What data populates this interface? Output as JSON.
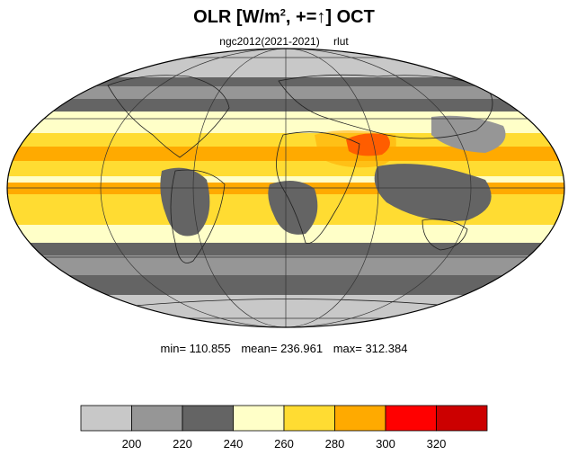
{
  "title": {
    "main": "OLR [W/m",
    "superscript": "2",
    "suffix": ", +=",
    "arrow": "↑",
    "tail": "] OCT"
  },
  "subtitle": {
    "source": "ngc2012(2021-2021)",
    "variable": "rlut"
  },
  "stats": {
    "min": "min= 110.855",
    "mean": "mean= 236.961",
    "max": "max= 312.384"
  },
  "colorbar": {
    "colors": [
      "#c8c8c8",
      "#969696",
      "#646464",
      "#ffffc8",
      "#ffdc32",
      "#ffaa00",
      "#ff0000",
      "#cc0000"
    ],
    "ticks": [
      "200",
      "220",
      "240",
      "260",
      "280",
      "300",
      "320"
    ]
  },
  "map": {
    "projection": "Mollweide",
    "ocean_base_color": "#c8c8c8"
  }
}
